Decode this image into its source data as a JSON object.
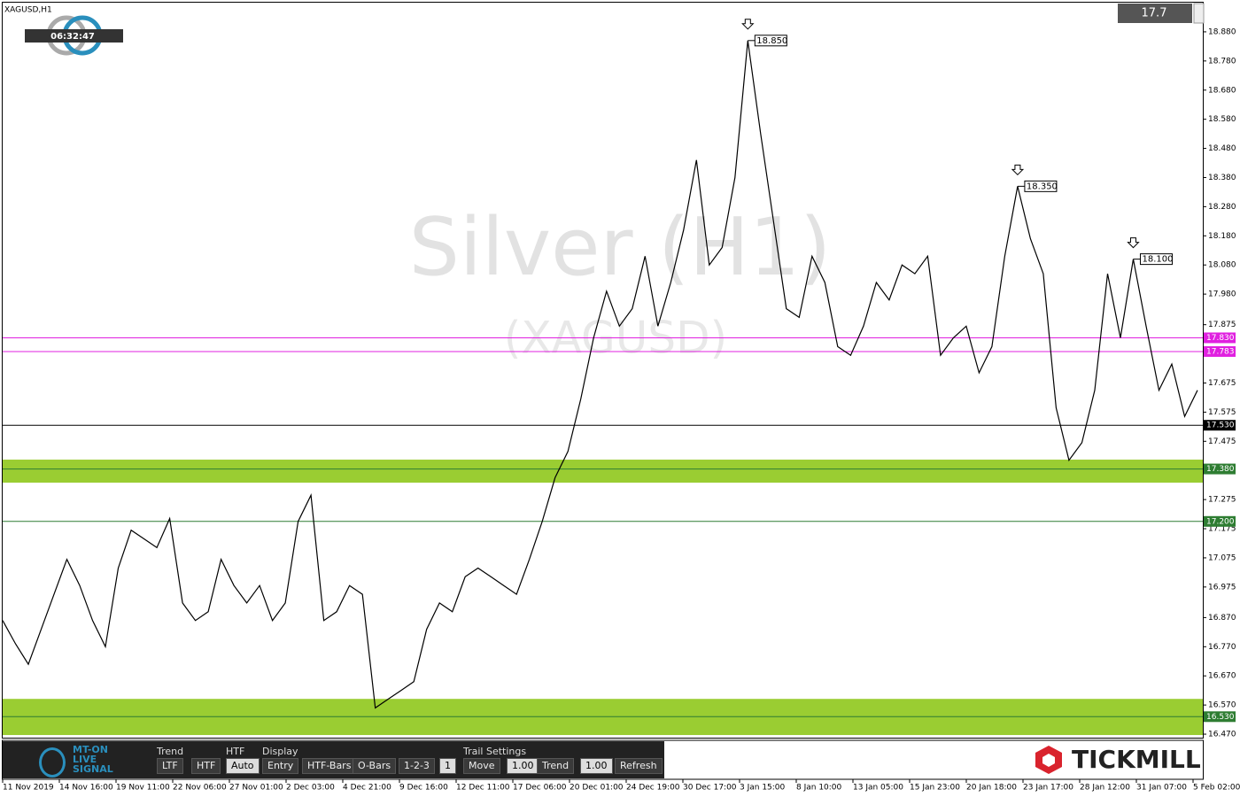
{
  "chart_data": {
    "type": "line",
    "title": "XAGUSD,H1",
    "watermark": "Silver (H1)",
    "watermark_sub": "(XAGUSD)",
    "color": "#000000",
    "values": [
      16.86,
      16.78,
      16.71,
      16.83,
      16.95,
      17.07,
      16.98,
      16.86,
      16.77,
      17.04,
      17.17,
      17.14,
      17.11,
      17.21,
      16.92,
      16.86,
      16.89,
      17.07,
      16.98,
      16.92,
      16.98,
      16.86,
      16.92,
      17.2,
      17.29,
      16.86,
      16.89,
      16.98,
      16.95,
      16.56,
      16.59,
      16.62,
      16.65,
      16.83,
      16.92,
      16.89,
      17.01,
      17.04,
      17.01,
      16.98,
      16.95,
      17.07,
      17.2,
      17.35,
      17.44,
      17.62,
      17.83,
      17.99,
      17.87,
      17.93,
      18.11,
      17.87,
      18.02,
      18.2,
      18.44,
      18.08,
      18.14,
      18.38,
      18.85,
      18.53,
      18.23,
      17.93,
      17.9,
      18.11,
      18.02,
      17.8,
      17.77,
      17.87,
      18.02,
      17.96,
      18.08,
      18.05,
      18.11,
      17.77,
      17.83,
      17.87,
      17.71,
      17.8,
      18.11,
      18.35,
      18.17,
      18.05,
      17.59,
      17.41,
      17.47,
      17.65,
      18.05,
      17.83,
      18.1,
      17.87,
      17.65,
      17.74,
      17.56,
      17.65
    ],
    "ylim": [
      16.461,
      18.974
    ],
    "yticks": [
      {
        "value": 18.88,
        "label": "18.880"
      },
      {
        "value": 18.78,
        "label": "18.780"
      },
      {
        "value": 18.68,
        "label": "18.680"
      },
      {
        "value": 18.58,
        "label": "18.580"
      },
      {
        "value": 18.48,
        "label": "18.480"
      },
      {
        "value": 18.38,
        "label": "18.380"
      },
      {
        "value": 18.28,
        "label": "18.280"
      },
      {
        "value": 18.18,
        "label": "18.180"
      },
      {
        "value": 18.08,
        "label": "18.080"
      },
      {
        "value": 17.98,
        "label": "17.980"
      },
      {
        "value": 17.875,
        "label": "17.875"
      },
      {
        "value": 17.675,
        "label": "17.675"
      },
      {
        "value": 17.575,
        "label": "17.575"
      },
      {
        "value": 17.475,
        "label": "17.475"
      },
      {
        "value": 17.275,
        "label": "17.275"
      },
      {
        "value": 17.175,
        "label": "17.175"
      },
      {
        "value": 17.075,
        "label": "17.075"
      },
      {
        "value": 16.975,
        "label": "16.975"
      },
      {
        "value": 16.87,
        "label": "16.870"
      },
      {
        "value": 16.77,
        "label": "16.770"
      },
      {
        "value": 16.67,
        "label": "16.670"
      },
      {
        "value": 16.57,
        "label": "16.570"
      },
      {
        "value": 16.47,
        "label": "16.470"
      }
    ],
    "xtick_labels": [
      "11 Nov 2019",
      "14 Nov 16:00",
      "19 Nov 11:00",
      "22 Nov 06:00",
      "27 Nov 01:00",
      "2 Dec 03:00",
      "4 Dec 21:00",
      "9 Dec 16:00",
      "12 Dec 11:00",
      "17 Dec 06:00",
      "20 Dec 01:00",
      "24 Dec 19:00",
      "30 Dec 17:00",
      "3 Jan 15:00",
      "8 Jan 10:00",
      "13 Jan 05:00",
      "15 Jan 23:00",
      "20 Jan 18:00",
      "23 Jan 17:00",
      "28 Jan 12:00",
      "31 Jan 07:00",
      "5 Feb 02:00"
    ],
    "zones": [
      {
        "from": 17.333,
        "to": 17.412,
        "color": "#9acd32"
      },
      {
        "from": 16.467,
        "to": 16.591,
        "color": "#9acd32"
      }
    ],
    "levels": [
      {
        "value": 17.83,
        "label": "17.830",
        "color": "#e020e0"
      },
      {
        "value": 17.783,
        "label": "17.783",
        "color": "#e020e0"
      },
      {
        "value": 17.53,
        "label": "17.530",
        "color": "#000000"
      },
      {
        "value": 17.38,
        "label": "17.380",
        "color": "#2e7d32"
      },
      {
        "value": 17.2,
        "label": "17.200",
        "color": "#2e7d32"
      },
      {
        "value": 16.53,
        "label": "16.530",
        "color": "#2e7d32"
      }
    ],
    "annotations": [
      {
        "value": 18.85,
        "label": "18.850"
      },
      {
        "value": 18.35,
        "label": "18.350"
      },
      {
        "value": 18.1,
        "label": "18.100"
      }
    ]
  },
  "widgets": {
    "timer": "06:32:47",
    "price_box": "17.7",
    "brand": "TICKMILL",
    "logo": [
      "MT-ON",
      "LIVE",
      "SIGNAL"
    ]
  },
  "toolbar": {
    "trend": "Trend",
    "ltf": "LTF",
    "htf": "HTF",
    "htf_title": "HTF",
    "auto": "Auto",
    "display": "Display",
    "entry": "Entry",
    "htf_bars": "HTF-Bars",
    "o_bars": "O-Bars",
    "one_two_three": "1-2-3",
    "one": "1",
    "trail": "Trail Settings",
    "move": "Move",
    "move_val": "1.00",
    "trend2": "Trend",
    "trend_val": "1.00",
    "refresh": "Refresh"
  }
}
